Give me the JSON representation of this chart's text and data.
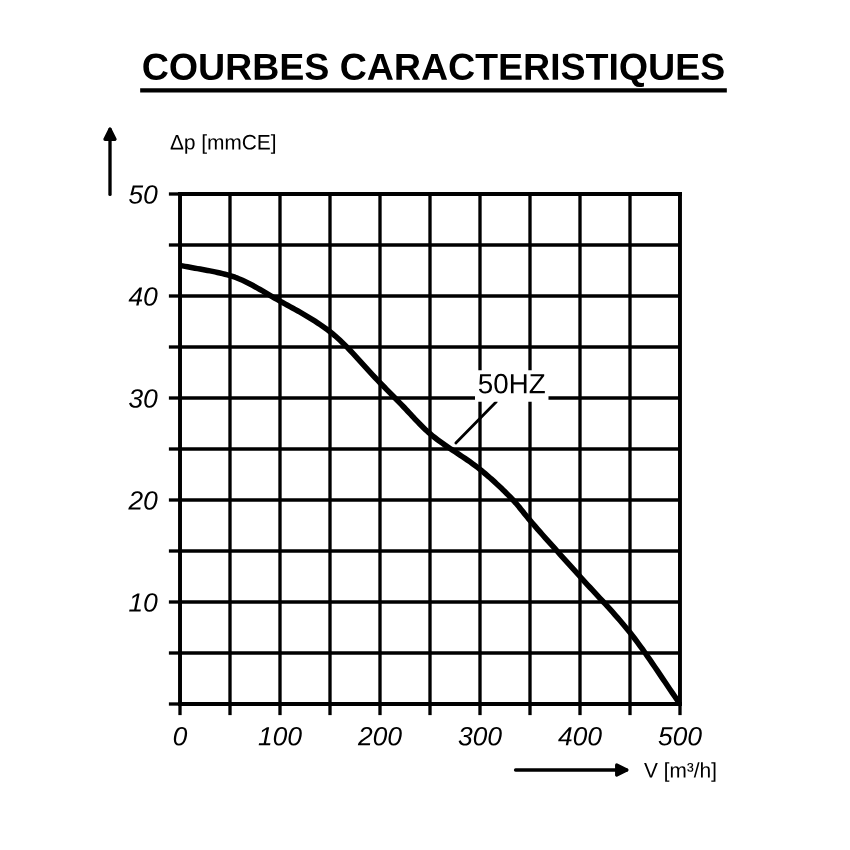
{
  "chart_data": {
    "type": "line",
    "title": "COURBES CARACTERISTIQUES",
    "xlabel": "V [m³/h]",
    "ylabel": "Δp [mmCE]",
    "x": [
      0,
      50,
      100,
      150,
      200,
      220,
      250,
      300,
      333,
      350,
      400,
      450,
      500
    ],
    "series": [
      {
        "color": "#000000",
        "values": [
          43,
          42,
          39.5,
          36.5,
          31.5,
          29.5,
          26.5,
          23,
          20,
          18,
          12.5,
          7,
          0
        ]
      }
    ],
    "xlim": [
      0,
      500
    ],
    "ylim": [
      0,
      50
    ],
    "xticks": [
      0,
      {
        "value": 50,
        "label": null
      },
      100,
      {
        "value": 150,
        "label": null
      },
      200,
      {
        "value": 250,
        "label": null
      },
      300,
      {
        "value": 350,
        "label": null
      },
      400,
      {
        "value": 450,
        "label": null
      },
      500
    ],
    "yticks": [
      {
        "value": 0,
        "label": null
      },
      {
        "value": 5,
        "label": null
      },
      10,
      {
        "value": 15,
        "label": null
      },
      20,
      {
        "value": 25,
        "label": null
      },
      30,
      {
        "value": 35,
        "label": null
      },
      40,
      {
        "value": 45,
        "label": null
      },
      50
    ],
    "annotations": [
      {
        "text": "50HZ",
        "x": 270,
        "y": 25
      }
    ],
    "grid": true,
    "marker": "none",
    "line_style": "solid"
  }
}
